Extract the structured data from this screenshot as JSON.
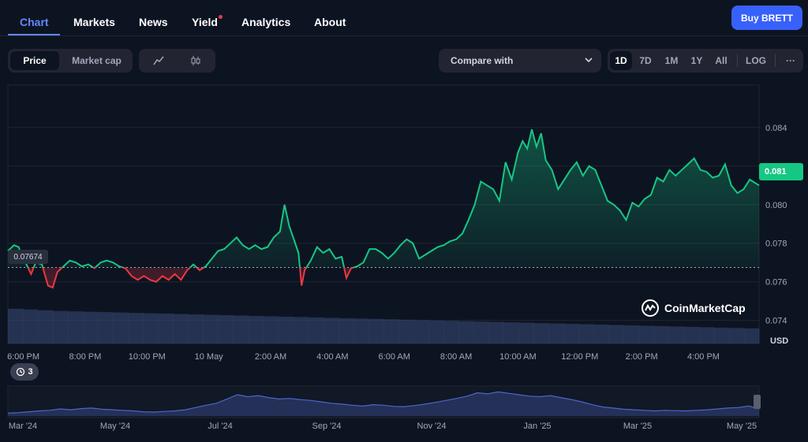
{
  "nav": {
    "tabs": [
      "Chart",
      "Markets",
      "News",
      "Yield",
      "Analytics",
      "About"
    ],
    "active": "Chart",
    "buy_label": "Buy BRETT"
  },
  "toolbar": {
    "metric_tabs": [
      "Price",
      "Market cap"
    ],
    "metric_selected": "Price",
    "chart_types": [
      "line-chart-icon",
      "candlestick-icon"
    ],
    "compare_label": "Compare with",
    "ranges": [
      "1D",
      "7D",
      "1M",
      "1Y",
      "All"
    ],
    "range_selected": "1D",
    "log_label": "LOG",
    "more_label": "···"
  },
  "watermark": "CoinMarketCap",
  "currency": "USD",
  "events_count": "3",
  "colors": {
    "up": "#16c784",
    "down": "#ea3943",
    "accent": "#3861fb",
    "tab_active": "#6188ff"
  },
  "chart_data": {
    "type": "line",
    "open_price": 0.07674,
    "open_label": "0.07674",
    "current_label": "0.081",
    "ylim": [
      0.0728,
      0.0862
    ],
    "y_ticks": [
      "0.084",
      "0.082",
      "0.080",
      "0.078",
      "0.076",
      "0.074"
    ],
    "y_tick_values": [
      0.084,
      0.082,
      0.08,
      0.078,
      0.076,
      0.074
    ],
    "x_start_hour": 17.5,
    "x_end_hour": 41.8,
    "x_ticks": [
      "6:00 PM",
      "8:00 PM",
      "10:00 PM",
      "10 May",
      "2:00 AM",
      "4:00 AM",
      "6:00 AM",
      "8:00 AM",
      "10:00 AM",
      "12:00 PM",
      "2:00 PM",
      "4:00 PM"
    ],
    "x_tick_hours": [
      18,
      20,
      22,
      24,
      26,
      28,
      30,
      32,
      34,
      36,
      38,
      40
    ],
    "series": [
      {
        "values": [
          [
            17.5,
            0.0776
          ],
          [
            17.7,
            0.0779
          ],
          [
            17.85,
            0.0778
          ],
          [
            17.95,
            0.0773
          ],
          [
            18.1,
            0.0769
          ],
          [
            18.25,
            0.0764
          ],
          [
            18.4,
            0.077
          ],
          [
            18.6,
            0.0769
          ],
          [
            18.8,
            0.0758
          ],
          [
            18.95,
            0.0757
          ],
          [
            19.1,
            0.0765
          ],
          [
            19.3,
            0.0768
          ],
          [
            19.5,
            0.0771
          ],
          [
            19.7,
            0.077
          ],
          [
            19.9,
            0.0768
          ],
          [
            20.1,
            0.0769
          ],
          [
            20.3,
            0.0767
          ],
          [
            20.5,
            0.077
          ],
          [
            20.7,
            0.0771
          ],
          [
            20.9,
            0.077
          ],
          [
            21.1,
            0.0768
          ],
          [
            21.3,
            0.0767
          ],
          [
            21.5,
            0.0763
          ],
          [
            21.7,
            0.0761
          ],
          [
            21.9,
            0.0763
          ],
          [
            22.1,
            0.0761
          ],
          [
            22.3,
            0.076
          ],
          [
            22.5,
            0.0763
          ],
          [
            22.7,
            0.0761
          ],
          [
            22.9,
            0.0764
          ],
          [
            23.1,
            0.0761
          ],
          [
            23.3,
            0.0766
          ],
          [
            23.5,
            0.0769
          ],
          [
            23.7,
            0.0766
          ],
          [
            23.9,
            0.0768
          ],
          [
            24.1,
            0.0772
          ],
          [
            24.3,
            0.0776
          ],
          [
            24.5,
            0.0777
          ],
          [
            24.7,
            0.078
          ],
          [
            24.9,
            0.0783
          ],
          [
            25.1,
            0.0779
          ],
          [
            25.3,
            0.0777
          ],
          [
            25.5,
            0.0779
          ],
          [
            25.7,
            0.0777
          ],
          [
            25.9,
            0.0778
          ],
          [
            26.1,
            0.0783
          ],
          [
            26.3,
            0.0786
          ],
          [
            26.45,
            0.08
          ],
          [
            26.6,
            0.0789
          ],
          [
            26.75,
            0.0782
          ],
          [
            26.9,
            0.0775
          ],
          [
            27.0,
            0.0758
          ],
          [
            27.1,
            0.0766
          ],
          [
            27.3,
            0.0771
          ],
          [
            27.5,
            0.0778
          ],
          [
            27.7,
            0.0775
          ],
          [
            27.9,
            0.0777
          ],
          [
            28.1,
            0.0772
          ],
          [
            28.3,
            0.0773
          ],
          [
            28.45,
            0.0762
          ],
          [
            28.6,
            0.0767
          ],
          [
            28.8,
            0.0768
          ],
          [
            29.0,
            0.077
          ],
          [
            29.2,
            0.0777
          ],
          [
            29.4,
            0.0777
          ],
          [
            29.6,
            0.0775
          ],
          [
            29.8,
            0.0772
          ],
          [
            30.0,
            0.0775
          ],
          [
            30.2,
            0.0779
          ],
          [
            30.4,
            0.0782
          ],
          [
            30.6,
            0.078
          ],
          [
            30.8,
            0.0772
          ],
          [
            31.0,
            0.0774
          ],
          [
            31.2,
            0.0776
          ],
          [
            31.4,
            0.0778
          ],
          [
            31.6,
            0.0779
          ],
          [
            31.8,
            0.0781
          ],
          [
            32.0,
            0.0782
          ],
          [
            32.2,
            0.0785
          ],
          [
            32.4,
            0.0792
          ],
          [
            32.6,
            0.08
          ],
          [
            32.8,
            0.0812
          ],
          [
            33.0,
            0.081
          ],
          [
            33.2,
            0.0808
          ],
          [
            33.4,
            0.0802
          ],
          [
            33.6,
            0.0822
          ],
          [
            33.8,
            0.0813
          ],
          [
            34.0,
            0.0827
          ],
          [
            34.15,
            0.0833
          ],
          [
            34.3,
            0.0829
          ],
          [
            34.45,
            0.0839
          ],
          [
            34.6,
            0.083
          ],
          [
            34.75,
            0.0837
          ],
          [
            34.9,
            0.0823
          ],
          [
            35.1,
            0.0818
          ],
          [
            35.3,
            0.0808
          ],
          [
            35.5,
            0.0813
          ],
          [
            35.7,
            0.0818
          ],
          [
            35.9,
            0.0822
          ],
          [
            36.1,
            0.0815
          ],
          [
            36.3,
            0.082
          ],
          [
            36.5,
            0.0818
          ],
          [
            36.7,
            0.081
          ],
          [
            36.9,
            0.0802
          ],
          [
            37.1,
            0.08
          ],
          [
            37.3,
            0.0797
          ],
          [
            37.5,
            0.0792
          ],
          [
            37.7,
            0.0801
          ],
          [
            37.9,
            0.0799
          ],
          [
            38.1,
            0.0803
          ],
          [
            38.3,
            0.0805
          ],
          [
            38.5,
            0.0814
          ],
          [
            38.7,
            0.0812
          ],
          [
            38.9,
            0.0818
          ],
          [
            39.1,
            0.0815
          ],
          [
            39.3,
            0.0818
          ],
          [
            39.5,
            0.0821
          ],
          [
            39.7,
            0.0824
          ],
          [
            39.9,
            0.0818
          ],
          [
            40.1,
            0.0817
          ],
          [
            40.3,
            0.0814
          ],
          [
            40.5,
            0.0815
          ],
          [
            40.7,
            0.0821
          ],
          [
            40.9,
            0.081
          ],
          [
            41.1,
            0.0806
          ],
          [
            41.3,
            0.0808
          ],
          [
            41.5,
            0.0813
          ],
          [
            41.8,
            0.081
          ]
        ]
      }
    ],
    "volume_values": [
      0.92,
      0.9,
      0.88,
      0.86,
      0.85,
      0.84,
      0.83,
      0.82,
      0.81,
      0.8,
      0.79,
      0.78,
      0.77,
      0.76,
      0.75,
      0.74,
      0.73,
      0.72,
      0.71,
      0.7,
      0.69,
      0.68,
      0.67,
      0.66,
      0.65,
      0.64,
      0.63,
      0.62,
      0.61,
      0.6,
      0.59,
      0.58,
      0.57,
      0.56,
      0.55,
      0.54,
      0.53,
      0.52,
      0.51,
      0.5,
      0.49,
      0.48,
      0.47,
      0.46,
      0.45,
      0.44,
      0.43,
      0.42,
      0.41,
      0.4
    ],
    "nav_x_ticks": [
      "Mar '24",
      "May '24",
      "Jul '24",
      "Sep '24",
      "Nov '24",
      "Jan '25",
      "Mar '25",
      "May '25"
    ],
    "nav_values": [
      0.1,
      0.12,
      0.15,
      0.18,
      0.2,
      0.25,
      0.22,
      0.26,
      0.28,
      0.24,
      0.22,
      0.2,
      0.18,
      0.15,
      0.14,
      0.16,
      0.18,
      0.22,
      0.3,
      0.38,
      0.45,
      0.6,
      0.75,
      0.68,
      0.72,
      0.65,
      0.6,
      0.62,
      0.58,
      0.55,
      0.5,
      0.45,
      0.42,
      0.38,
      0.35,
      0.4,
      0.38,
      0.34,
      0.33,
      0.37,
      0.42,
      0.48,
      0.55,
      0.62,
      0.7,
      0.82,
      0.78,
      0.85,
      0.8,
      0.75,
      0.7,
      0.68,
      0.72,
      0.65,
      0.58,
      0.5,
      0.4,
      0.32,
      0.28,
      0.24,
      0.22,
      0.2,
      0.18,
      0.2,
      0.19,
      0.18,
      0.2,
      0.22,
      0.25,
      0.28,
      0.3,
      0.35,
      0.25
    ]
  }
}
